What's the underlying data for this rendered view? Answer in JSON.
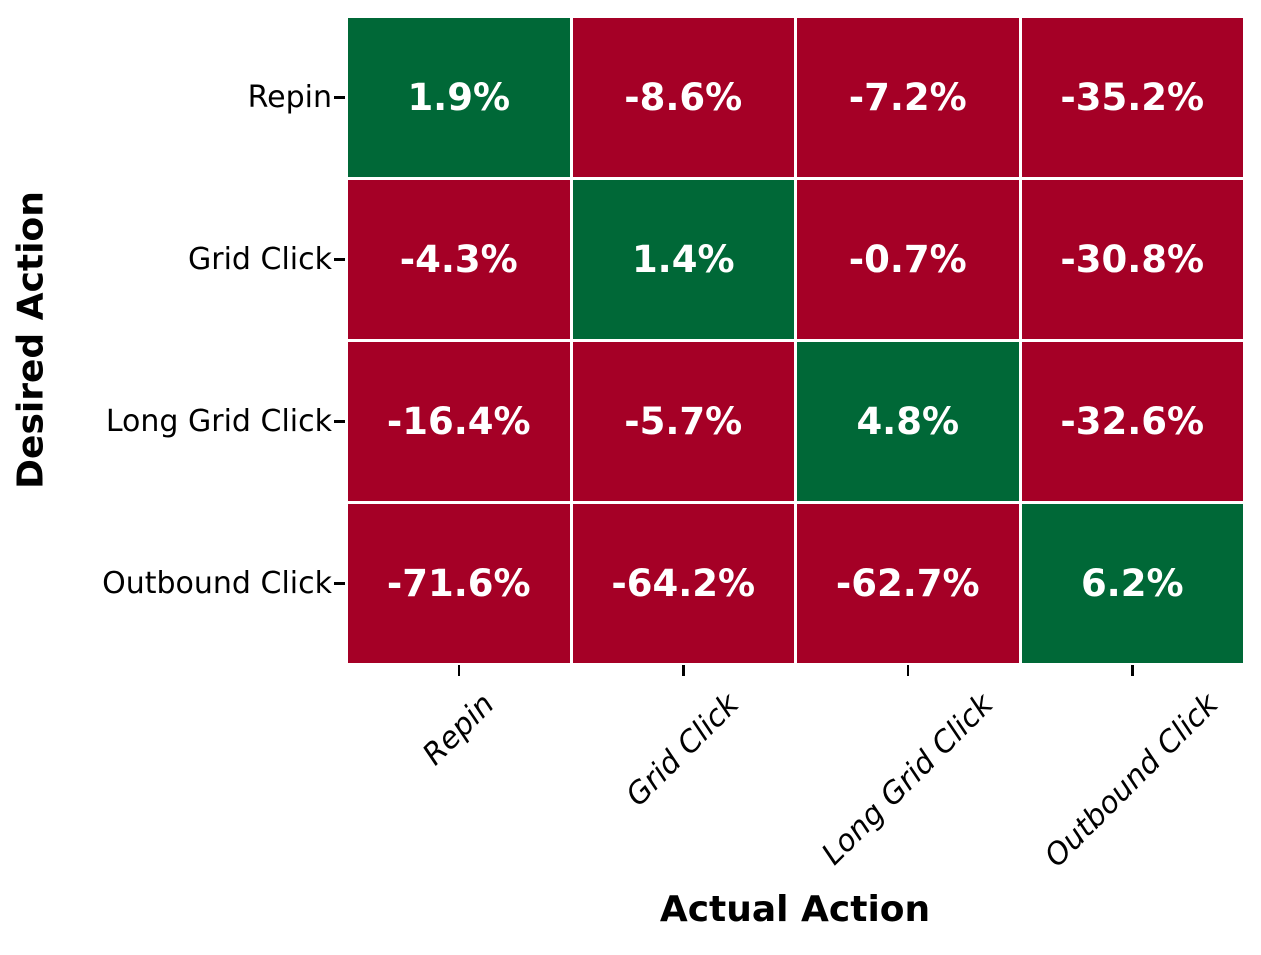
{
  "figure": {
    "background": "#ffffff"
  },
  "chart_data": {
    "type": "heatmap",
    "title": "",
    "xlabel": "Actual Action",
    "ylabel": "Desired Action",
    "x_categories": [
      "Repin",
      "Grid Click",
      "Long Grid Click",
      "Outbound Click"
    ],
    "y_categories": [
      "Repin",
      "Grid Click",
      "Long Grid Click",
      "Outbound Click"
    ],
    "values": [
      [
        1.9,
        -8.6,
        -7.2,
        -35.2
      ],
      [
        -4.3,
        1.4,
        -0.7,
        -30.8
      ],
      [
        -16.4,
        -5.7,
        4.8,
        -32.6
      ],
      [
        -71.6,
        -64.2,
        -62.7,
        6.2
      ]
    ],
    "cell_labels": [
      [
        "1.9%",
        "-8.6%",
        "-7.2%",
        "-35.2%"
      ],
      [
        "-4.3%",
        "1.4%",
        "-0.7%",
        "-30.8%"
      ],
      [
        "-16.4%",
        "-5.7%",
        "4.8%",
        "-32.6%"
      ],
      [
        "-71.6%",
        "-64.2%",
        "-62.7%",
        "6.2%"
      ]
    ],
    "colors": {
      "positive_cell": "#006837",
      "negative_cell": "#A50026",
      "cell_text": "#ffffff",
      "gridline": "#ffffff",
      "axis_text": "#000000",
      "tick": "#000000"
    },
    "legend": "none",
    "grid": "white lines between cells"
  }
}
